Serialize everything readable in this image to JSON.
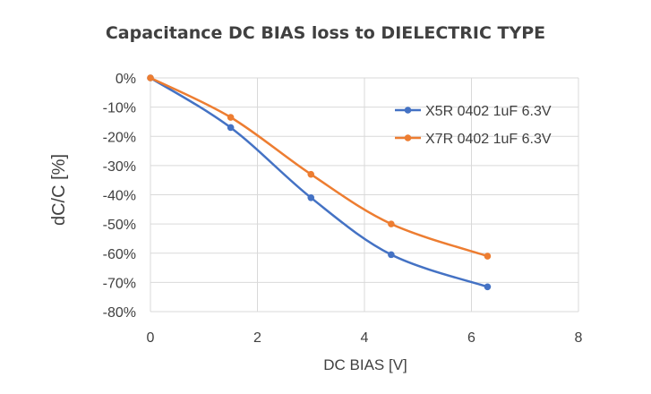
{
  "chart_data": {
    "type": "line",
    "title": "Capacitance DC BIAS loss to DIELECTRIC TYPE",
    "xlabel": "DC BIAS [V]",
    "ylabel": "dC/C [%]",
    "xlim": [
      0,
      8
    ],
    "ylim": [
      -80,
      0
    ],
    "x_ticks": [
      0,
      2,
      4,
      6,
      8
    ],
    "x_tick_labels": [
      "0",
      "2",
      "4",
      "6",
      "8"
    ],
    "y_ticks": [
      0,
      -10,
      -20,
      -30,
      -40,
      -50,
      -60,
      -70,
      -80
    ],
    "y_tick_labels": [
      "0%",
      "-10%",
      "-20%",
      "-30%",
      "-40%",
      "-50%",
      "-60%",
      "-70%",
      "-80%"
    ],
    "grid": true,
    "legend_position": "right",
    "series": [
      {
        "name": "X5R 0402 1uF 6.3V",
        "color": "#4472C4",
        "x": [
          0,
          1.5,
          3,
          4.5,
          6.3
        ],
        "y": [
          0,
          -17,
          -41,
          -60.5,
          -71.5
        ]
      },
      {
        "name": "X7R 0402 1uF 6.3V",
        "color": "#ED7D31",
        "x": [
          0,
          1.5,
          3,
          4.5,
          6.3
        ],
        "y": [
          0,
          -13.5,
          -33,
          -50,
          -61
        ]
      }
    ]
  }
}
